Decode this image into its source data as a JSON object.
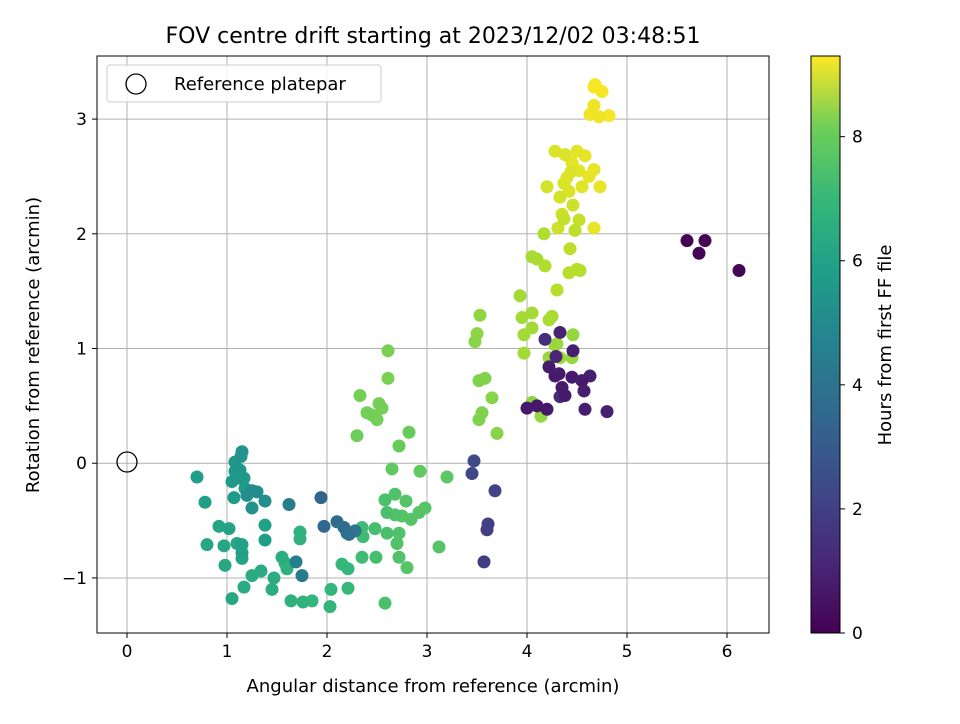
{
  "chart_data": {
    "type": "scatter",
    "title": "FOV centre drift starting at 2023/12/02 03:48:51",
    "xlabel": "Angular distance from reference (arcmin)",
    "ylabel": "Rotation from reference (arcmin)",
    "xlim": [
      -0.3,
      6.42
    ],
    "ylim": [
      -1.48,
      3.55
    ],
    "xticks": [
      0,
      1,
      2,
      3,
      4,
      5,
      6
    ],
    "yticks": [
      -1,
      0,
      1,
      2,
      3
    ],
    "grid": true,
    "legend": {
      "placement": "top-left",
      "entries": [
        {
          "label": "Reference platepar",
          "marker": "open-circle"
        }
      ]
    },
    "reference_point": {
      "x": 0,
      "y": 0
    },
    "colorbar": {
      "label": "Hours from first FF file",
      "range": [
        0,
        9.3
      ],
      "ticks": [
        0,
        2,
        4,
        6,
        8
      ],
      "colormap": "viridis"
    },
    "point_color_value": "hours",
    "points": [
      {
        "x": 5.6,
        "y": 1.94,
        "hours": 0.1
      },
      {
        "x": 5.72,
        "y": 1.83,
        "hours": 0.1
      },
      {
        "x": 5.78,
        "y": 1.94,
        "hours": 0.1
      },
      {
        "x": 6.12,
        "y": 1.68,
        "hours": 0.1
      },
      {
        "x": 4.0,
        "y": 0.48,
        "hours": 0.6
      },
      {
        "x": 4.1,
        "y": 0.5,
        "hours": 0.6
      },
      {
        "x": 4.2,
        "y": 0.47,
        "hours": 0.6
      },
      {
        "x": 4.22,
        "y": 0.84,
        "hours": 0.7
      },
      {
        "x": 4.28,
        "y": 0.76,
        "hours": 0.7
      },
      {
        "x": 4.32,
        "y": 0.78,
        "hours": 0.7
      },
      {
        "x": 4.35,
        "y": 0.66,
        "hours": 0.7
      },
      {
        "x": 4.38,
        "y": 0.59,
        "hours": 0.7
      },
      {
        "x": 4.45,
        "y": 0.75,
        "hours": 0.7
      },
      {
        "x": 4.46,
        "y": 0.98,
        "hours": 0.8
      },
      {
        "x": 4.55,
        "y": 0.72,
        "hours": 0.7
      },
      {
        "x": 4.57,
        "y": 0.63,
        "hours": 0.8
      },
      {
        "x": 4.58,
        "y": 0.47,
        "hours": 0.8
      },
      {
        "x": 4.63,
        "y": 0.76,
        "hours": 0.8
      },
      {
        "x": 4.8,
        "y": 0.45,
        "hours": 0.8
      },
      {
        "x": 4.33,
        "y": 1.14,
        "hours": 0.9
      },
      {
        "x": 4.29,
        "y": 0.93,
        "hours": 1.0
      },
      {
        "x": 4.33,
        "y": 0.58,
        "hours": 1.2
      },
      {
        "x": 4.18,
        "y": 1.08,
        "hours": 1.2
      },
      {
        "x": 3.57,
        "y": -0.86,
        "hours": 1.7
      },
      {
        "x": 3.6,
        "y": -0.58,
        "hours": 1.8
      },
      {
        "x": 3.61,
        "y": -0.53,
        "hours": 1.8
      },
      {
        "x": 3.68,
        "y": -0.24,
        "hours": 1.9
      },
      {
        "x": 3.45,
        "y": -0.09,
        "hours": 2.0
      },
      {
        "x": 3.47,
        "y": 0.02,
        "hours": 2.1
      },
      {
        "x": 1.94,
        "y": -0.3,
        "hours": 3.0
      },
      {
        "x": 1.97,
        "y": -0.55,
        "hours": 3.1
      },
      {
        "x": 2.1,
        "y": -0.51,
        "hours": 3.2
      },
      {
        "x": 2.17,
        "y": -0.56,
        "hours": 3.3
      },
      {
        "x": 2.2,
        "y": -0.61,
        "hours": 3.4
      },
      {
        "x": 2.22,
        "y": -0.62,
        "hours": 3.5
      },
      {
        "x": 2.28,
        "y": -0.59,
        "hours": 3.6
      },
      {
        "x": 1.75,
        "y": -0.98,
        "hours": 3.8
      },
      {
        "x": 1.62,
        "y": -0.36,
        "hours": 3.9
      },
      {
        "x": 1.69,
        "y": -0.86,
        "hours": 4.0
      },
      {
        "x": 1.25,
        "y": -0.24,
        "hours": 4.5
      },
      {
        "x": 1.3,
        "y": -0.25,
        "hours": 4.5
      },
      {
        "x": 1.38,
        "y": -0.33,
        "hours": 4.6
      },
      {
        "x": 1.2,
        "y": -0.28,
        "hours": 4.6
      },
      {
        "x": 1.25,
        "y": -0.39,
        "hours": 4.7
      },
      {
        "x": 1.15,
        "y": 0.1,
        "hours": 4.8
      },
      {
        "x": 1.14,
        "y": 0.06,
        "hours": 4.8
      },
      {
        "x": 1.13,
        "y": -0.06,
        "hours": 4.9
      },
      {
        "x": 1.08,
        "y": 0.01,
        "hours": 4.9
      },
      {
        "x": 1.08,
        "y": -0.07,
        "hours": 5.0
      },
      {
        "x": 1.12,
        "y": -0.13,
        "hours": 5.0
      },
      {
        "x": 1.17,
        "y": -0.13,
        "hours": 5.0
      },
      {
        "x": 1.18,
        "y": -0.22,
        "hours": 5.1
      },
      {
        "x": 1.05,
        "y": -0.16,
        "hours": 5.1
      },
      {
        "x": 1.07,
        "y": -0.3,
        "hours": 5.1
      },
      {
        "x": 0.78,
        "y": -0.34,
        "hours": 5.2
      },
      {
        "x": 0.7,
        "y": -0.12,
        "hours": 5.2
      },
      {
        "x": 1.38,
        "y": -0.67,
        "hours": 5.2
      },
      {
        "x": 1.38,
        "y": -0.54,
        "hours": 5.3
      },
      {
        "x": 1.15,
        "y": -0.71,
        "hours": 5.3
      },
      {
        "x": 1.15,
        "y": -0.78,
        "hours": 5.3
      },
      {
        "x": 1.15,
        "y": -0.83,
        "hours": 5.4
      },
      {
        "x": 1.02,
        "y": -0.57,
        "hours": 5.4
      },
      {
        "x": 0.92,
        "y": -0.55,
        "hours": 5.4
      },
      {
        "x": 0.97,
        "y": -0.72,
        "hours": 5.5
      },
      {
        "x": 1.1,
        "y": -0.7,
        "hours": 5.5
      },
      {
        "x": 0.8,
        "y": -0.71,
        "hours": 5.5
      },
      {
        "x": 0.98,
        "y": -0.89,
        "hours": 5.6
      },
      {
        "x": 1.05,
        "y": -1.18,
        "hours": 5.6
      },
      {
        "x": 1.17,
        "y": -1.08,
        "hours": 5.7
      },
      {
        "x": 1.25,
        "y": -0.98,
        "hours": 5.7
      },
      {
        "x": 1.34,
        "y": -0.94,
        "hours": 5.7
      },
      {
        "x": 1.45,
        "y": -1.1,
        "hours": 5.8
      },
      {
        "x": 1.47,
        "y": -1.0,
        "hours": 5.8
      },
      {
        "x": 1.55,
        "y": -0.82,
        "hours": 5.8
      },
      {
        "x": 1.58,
        "y": -0.87,
        "hours": 5.9
      },
      {
        "x": 1.6,
        "y": -0.92,
        "hours": 5.9
      },
      {
        "x": 1.64,
        "y": -1.2,
        "hours": 5.9
      },
      {
        "x": 1.73,
        "y": -0.6,
        "hours": 6.0
      },
      {
        "x": 1.73,
        "y": -0.66,
        "hours": 6.0
      },
      {
        "x": 1.76,
        "y": -1.21,
        "hours": 6.0
      },
      {
        "x": 1.85,
        "y": -1.2,
        "hours": 6.1
      },
      {
        "x": 2.04,
        "y": -1.1,
        "hours": 6.1
      },
      {
        "x": 2.03,
        "y": -1.25,
        "hours": 6.1
      },
      {
        "x": 2.15,
        "y": -0.88,
        "hours": 6.2
      },
      {
        "x": 2.21,
        "y": -0.92,
        "hours": 6.2
      },
      {
        "x": 2.21,
        "y": -1.09,
        "hours": 6.2
      },
      {
        "x": 2.35,
        "y": -0.56,
        "hours": 6.4
      },
      {
        "x": 2.36,
        "y": -0.64,
        "hours": 6.4
      },
      {
        "x": 2.35,
        "y": -0.82,
        "hours": 6.4
      },
      {
        "x": 2.48,
        "y": -0.57,
        "hours": 6.5
      },
      {
        "x": 2.49,
        "y": -0.82,
        "hours": 6.5
      },
      {
        "x": 2.58,
        "y": -0.32,
        "hours": 6.6
      },
      {
        "x": 2.6,
        "y": -0.43,
        "hours": 6.6
      },
      {
        "x": 2.6,
        "y": -0.61,
        "hours": 6.6
      },
      {
        "x": 2.58,
        "y": -1.22,
        "hours": 6.6
      },
      {
        "x": 2.68,
        "y": -0.27,
        "hours": 6.7
      },
      {
        "x": 2.68,
        "y": -0.45,
        "hours": 6.7
      },
      {
        "x": 2.7,
        "y": -0.7,
        "hours": 6.7
      },
      {
        "x": 2.72,
        "y": -0.82,
        "hours": 6.7
      },
      {
        "x": 2.72,
        "y": -0.61,
        "hours": 6.7
      },
      {
        "x": 2.75,
        "y": -0.46,
        "hours": 6.8
      },
      {
        "x": 2.8,
        "y": -0.91,
        "hours": 6.8
      },
      {
        "x": 2.84,
        "y": -0.49,
        "hours": 6.8
      },
      {
        "x": 2.79,
        "y": -0.33,
        "hours": 6.8
      },
      {
        "x": 2.92,
        "y": -0.43,
        "hours": 6.8
      },
      {
        "x": 2.98,
        "y": -0.39,
        "hours": 6.8
      },
      {
        "x": 3.12,
        "y": -0.73,
        "hours": 6.8
      },
      {
        "x": 3.2,
        "y": -0.12,
        "hours": 6.9
      },
      {
        "x": 2.65,
        "y": -0.05,
        "hours": 7.0
      },
      {
        "x": 2.93,
        "y": -0.07,
        "hours": 7.0
      },
      {
        "x": 2.72,
        "y": 0.15,
        "hours": 7.1
      },
      {
        "x": 2.82,
        "y": 0.27,
        "hours": 7.1
      },
      {
        "x": 2.3,
        "y": 0.24,
        "hours": 7.2
      },
      {
        "x": 2.4,
        "y": 0.44,
        "hours": 7.3
      },
      {
        "x": 2.45,
        "y": 0.42,
        "hours": 7.3
      },
      {
        "x": 2.5,
        "y": 0.38,
        "hours": 7.3
      },
      {
        "x": 2.52,
        "y": 0.52,
        "hours": 7.3
      },
      {
        "x": 2.55,
        "y": 0.48,
        "hours": 7.3
      },
      {
        "x": 2.33,
        "y": 0.59,
        "hours": 7.3
      },
      {
        "x": 2.61,
        "y": 0.74,
        "hours": 7.4
      },
      {
        "x": 2.61,
        "y": 0.98,
        "hours": 7.4
      },
      {
        "x": 3.52,
        "y": 0.38,
        "hours": 7.5
      },
      {
        "x": 3.55,
        "y": 0.44,
        "hours": 7.5
      },
      {
        "x": 3.58,
        "y": 0.74,
        "hours": 7.5
      },
      {
        "x": 3.52,
        "y": 0.72,
        "hours": 7.5
      },
      {
        "x": 3.65,
        "y": 0.57,
        "hours": 7.6
      },
      {
        "x": 3.7,
        "y": 0.26,
        "hours": 7.6
      },
      {
        "x": 3.48,
        "y": 1.06,
        "hours": 7.6
      },
      {
        "x": 3.5,
        "y": 1.13,
        "hours": 7.7
      },
      {
        "x": 3.53,
        "y": 1.29,
        "hours": 7.7
      },
      {
        "x": 4.05,
        "y": 0.53,
        "hours": 7.7
      },
      {
        "x": 4.14,
        "y": 0.41,
        "hours": 7.8
      },
      {
        "x": 4.45,
        "y": 0.92,
        "hours": 7.8
      },
      {
        "x": 4.46,
        "y": 1.12,
        "hours": 7.8
      },
      {
        "x": 4.3,
        "y": 1.04,
        "hours": 7.9
      },
      {
        "x": 4.22,
        "y": 0.92,
        "hours": 7.9
      },
      {
        "x": 4.33,
        "y": 0.92,
        "hours": 7.9
      },
      {
        "x": 4.28,
        "y": 1.03,
        "hours": 7.9
      },
      {
        "x": 3.97,
        "y": 0.96,
        "hours": 8.0
      },
      {
        "x": 3.97,
        "y": 1.12,
        "hours": 8.0
      },
      {
        "x": 3.95,
        "y": 1.27,
        "hours": 8.0
      },
      {
        "x": 3.93,
        "y": 1.46,
        "hours": 8.0
      },
      {
        "x": 4.05,
        "y": 1.18,
        "hours": 8.0
      },
      {
        "x": 4.05,
        "y": 1.31,
        "hours": 8.0
      },
      {
        "x": 4.22,
        "y": 1.25,
        "hours": 8.1
      },
      {
        "x": 4.25,
        "y": 1.28,
        "hours": 8.1
      },
      {
        "x": 4.05,
        "y": 1.8,
        "hours": 8.1
      },
      {
        "x": 4.1,
        "y": 1.78,
        "hours": 8.1
      },
      {
        "x": 4.18,
        "y": 1.72,
        "hours": 8.2
      },
      {
        "x": 4.17,
        "y": 2.0,
        "hours": 8.2
      },
      {
        "x": 4.3,
        "y": 1.51,
        "hours": 8.3
      },
      {
        "x": 4.42,
        "y": 1.66,
        "hours": 8.3
      },
      {
        "x": 4.5,
        "y": 1.69,
        "hours": 8.3
      },
      {
        "x": 4.53,
        "y": 1.68,
        "hours": 8.3
      },
      {
        "x": 4.43,
        "y": 1.87,
        "hours": 8.4
      },
      {
        "x": 4.48,
        "y": 2.03,
        "hours": 8.4
      },
      {
        "x": 4.52,
        "y": 2.12,
        "hours": 8.5
      },
      {
        "x": 4.37,
        "y": 2.13,
        "hours": 8.5
      },
      {
        "x": 4.46,
        "y": 2.25,
        "hours": 8.6
      },
      {
        "x": 4.35,
        "y": 2.17,
        "hours": 8.6
      },
      {
        "x": 4.31,
        "y": 2.05,
        "hours": 8.6
      },
      {
        "x": 4.2,
        "y": 2.41,
        "hours": 8.7
      },
      {
        "x": 4.33,
        "y": 2.32,
        "hours": 8.7
      },
      {
        "x": 4.37,
        "y": 2.44,
        "hours": 8.8
      },
      {
        "x": 4.42,
        "y": 2.37,
        "hours": 8.8
      },
      {
        "x": 4.44,
        "y": 2.54,
        "hours": 8.8
      },
      {
        "x": 4.38,
        "y": 2.69,
        "hours": 8.8
      },
      {
        "x": 4.45,
        "y": 2.62,
        "hours": 8.9
      },
      {
        "x": 4.5,
        "y": 2.72,
        "hours": 8.9
      },
      {
        "x": 4.52,
        "y": 2.55,
        "hours": 8.9
      },
      {
        "x": 4.55,
        "y": 2.41,
        "hours": 8.9
      },
      {
        "x": 4.58,
        "y": 2.68,
        "hours": 9.0
      },
      {
        "x": 4.62,
        "y": 2.5,
        "hours": 9.0
      },
      {
        "x": 4.67,
        "y": 2.56,
        "hours": 9.0
      },
      {
        "x": 4.73,
        "y": 2.41,
        "hours": 9.0
      },
      {
        "x": 4.67,
        "y": 2.05,
        "hours": 9.0
      },
      {
        "x": 4.63,
        "y": 3.04,
        "hours": 9.1
      },
      {
        "x": 4.72,
        "y": 3.02,
        "hours": 9.1
      },
      {
        "x": 4.67,
        "y": 3.12,
        "hours": 9.1
      },
      {
        "x": 4.67,
        "y": 3.28,
        "hours": 9.2
      },
      {
        "x": 4.68,
        "y": 3.3,
        "hours": 9.2
      },
      {
        "x": 4.75,
        "y": 3.24,
        "hours": 9.2
      },
      {
        "x": 4.82,
        "y": 3.03,
        "hours": 9.2
      },
      {
        "x": 4.28,
        "y": 2.72,
        "hours": 8.8
      },
      {
        "x": 4.4,
        "y": 2.49,
        "hours": 8.8
      }
    ]
  }
}
